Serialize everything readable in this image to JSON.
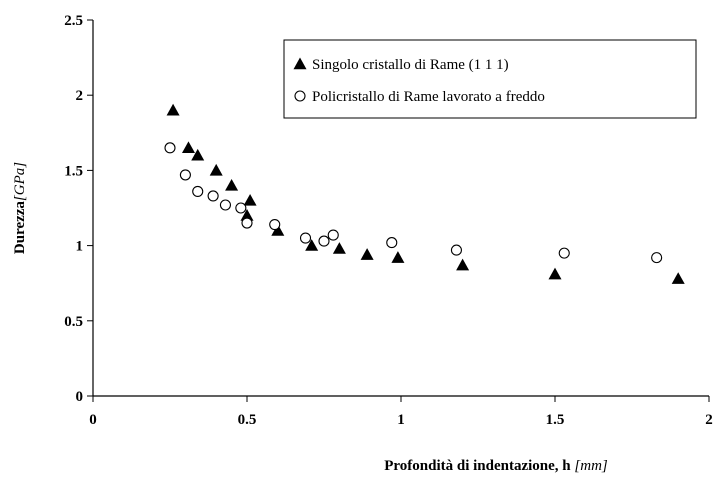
{
  "chart_data": {
    "type": "scatter",
    "x_label": "Profondità di indentazione, h",
    "x_unit": "[mm]",
    "y_label": "Durezza",
    "y_unit": "[GPa]",
    "xlim": [
      0,
      2
    ],
    "ylim": [
      0,
      2.5
    ],
    "xticks": [
      0,
      0.5,
      1,
      1.5,
      2
    ],
    "yticks": [
      0,
      0.5,
      1,
      1.5,
      2,
      2.5
    ],
    "legend": "upper right",
    "series": [
      {
        "name": "Singolo cristallo di Rame (1 1 1)",
        "color": "#000000",
        "marker": "triangle",
        "x": [
          0.26,
          0.31,
          0.34,
          0.4,
          0.45,
          0.51,
          0.5,
          0.6,
          0.71,
          0.8,
          0.89,
          0.99,
          1.2,
          1.5,
          1.9
        ],
        "values": [
          1.9,
          1.65,
          1.6,
          1.5,
          1.4,
          1.3,
          1.2,
          1.1,
          1.0,
          0.98,
          0.94,
          0.92,
          0.87,
          0.81,
          0.78
        ]
      },
      {
        "name": "Policristallo di Rame lavorato a freddo",
        "color": "#000000",
        "marker": "circle",
        "x": [
          0.25,
          0.3,
          0.34,
          0.39,
          0.43,
          0.48,
          0.5,
          0.59,
          0.69,
          0.75,
          0.78,
          0.97,
          1.18,
          1.53,
          1.83
        ],
        "values": [
          1.65,
          1.47,
          1.36,
          1.33,
          1.27,
          1.25,
          1.15,
          1.14,
          1.05,
          1.03,
          1.07,
          1.02,
          0.97,
          0.95,
          0.92
        ]
      }
    ]
  }
}
